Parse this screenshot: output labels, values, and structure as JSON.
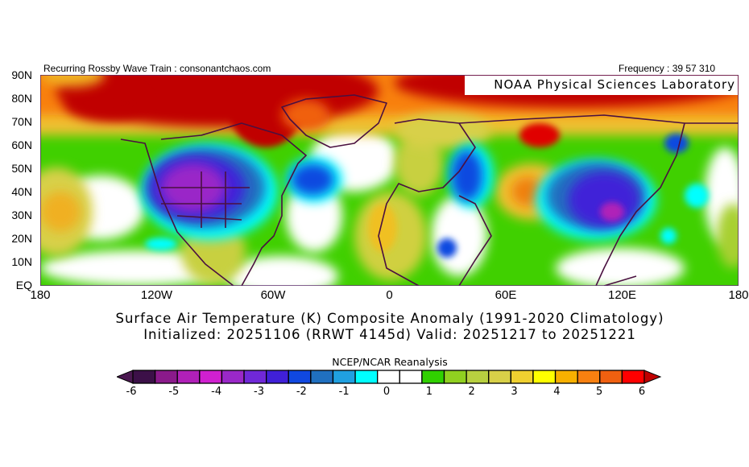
{
  "header": {
    "left_text": "Recurring Rossby Wave Train : consonantchaos.com",
    "right_text": "Frequency : 39 57 310",
    "watermark": "NOAA Physical Sciences Laboratory"
  },
  "map": {
    "lat_labels": [
      "90N",
      "80N",
      "70N",
      "60N",
      "50N",
      "40N",
      "30N",
      "20N",
      "10N",
      "EQ"
    ],
    "lon_labels": [
      "180",
      "120W",
      "60W",
      "0",
      "60E",
      "120E",
      "180"
    ],
    "colors": {
      "border": "#4a1040",
      "frame": "#5a2a6a"
    }
  },
  "title": {
    "line1": "Surface Air Temperature (K) Composite Anomaly (1991-2020 Climatology)",
    "line2": "Initialized: 20251106 (RRWT 4145d) Valid: 20251217 to 20251221"
  },
  "colorbar": {
    "title": "NCEP/NCAR Reanalysis",
    "labels": [
      "-6",
      "-5",
      "-4",
      "-3",
      "-2",
      "-1",
      "0",
      "1",
      "2",
      "3",
      "4",
      "5",
      "6"
    ],
    "low_color": "#4a1850",
    "high_color": "#c00000",
    "colors": [
      "#3c1048",
      "#8b1a8b",
      "#b020b8",
      "#d020d0",
      "#9a28c8",
      "#7028d8",
      "#4020d8",
      "#1048e0",
      "#2070c0",
      "#20a0e0",
      "#00ffff",
      "#ffffff",
      "#ffffff",
      "#30d000",
      "#90d020",
      "#b8d040",
      "#d8d048",
      "#f0d030",
      "#ffff00",
      "#f8b000",
      "#f88010",
      "#f06010",
      "#ff0000"
    ]
  }
}
